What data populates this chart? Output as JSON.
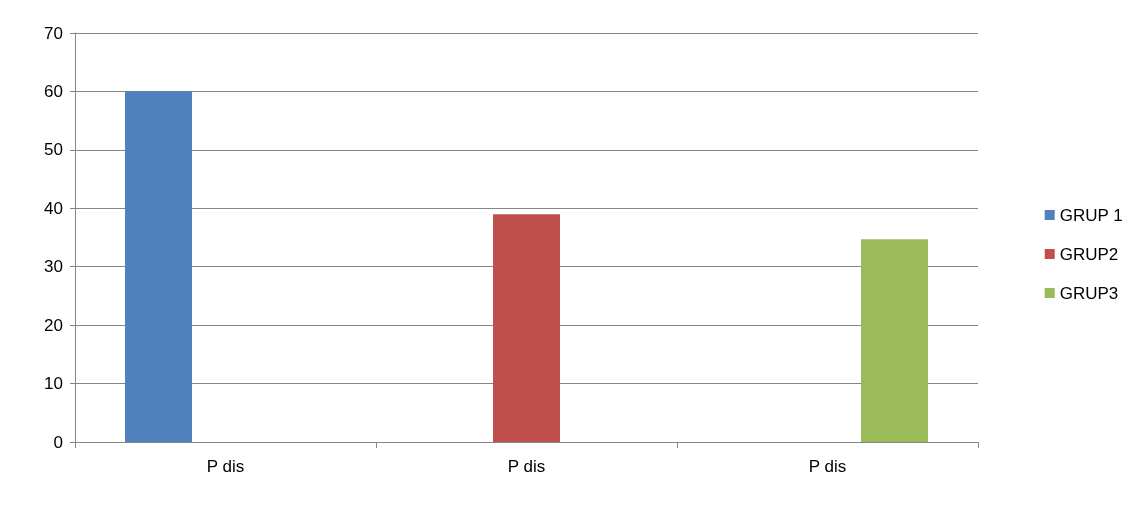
{
  "chart_data": {
    "type": "bar",
    "categories": [
      "P dis",
      "P dis",
      "P dis"
    ],
    "series": [
      {
        "name": "GRUP 1",
        "color": "#4f81bd",
        "values": [
          60,
          null,
          null
        ]
      },
      {
        "name": "GRUP2",
        "color": "#c0504d",
        "values": [
          null,
          39,
          null
        ]
      },
      {
        "name": "GRUP3",
        "color": "#9bbb59",
        "values": [
          null,
          null,
          34.7
        ]
      }
    ],
    "ylim": [
      0,
      70
    ],
    "yticks": [
      0,
      10,
      20,
      30,
      40,
      50,
      60,
      70
    ],
    "grid": "y",
    "legend": "right"
  }
}
